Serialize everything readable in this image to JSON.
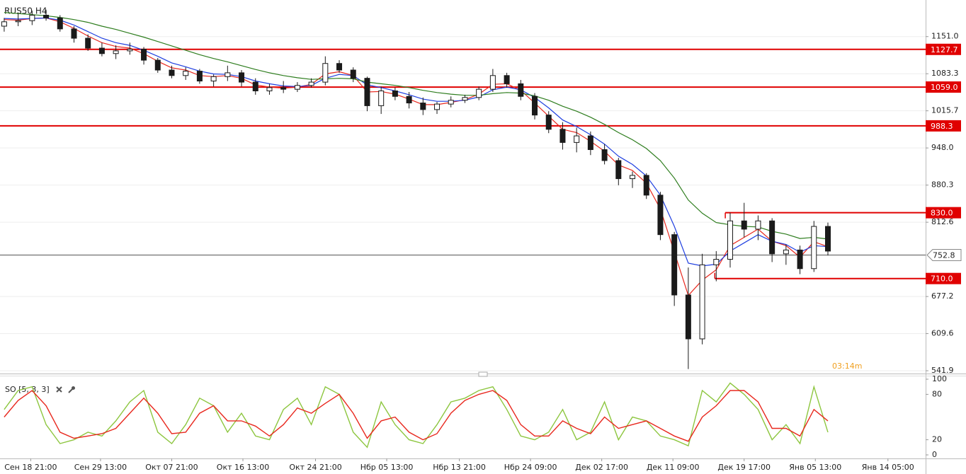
{
  "chart_data": {
    "type": "candlestick",
    "title": "RUS50 H4",
    "timer": "03:14m",
    "xlim": [
      -0.3,
      66
    ],
    "xticks": [
      {
        "value": 1.9,
        "label": "Сен 18 21:00"
      },
      {
        "value": 6.9,
        "label": "Сен 29 13:00"
      },
      {
        "value": 12.0,
        "label": "Окт 07 21:00"
      },
      {
        "value": 17.1,
        "label": "Окт 16 13:00"
      },
      {
        "value": 22.3,
        "label": "Окт 24 21:00"
      },
      {
        "value": 27.4,
        "label": "Нбр 05 13:00"
      },
      {
        "value": 32.6,
        "label": "Нбр 13 21:00"
      },
      {
        "value": 37.7,
        "label": "Нбр 24 09:00"
      },
      {
        "value": 42.8,
        "label": "Дек 02 17:00"
      },
      {
        "value": 47.9,
        "label": "Дек 11 09:00"
      },
      {
        "value": 53.0,
        "label": "Дек 19 17:00"
      },
      {
        "value": 58.1,
        "label": "Янв 05 13:00"
      },
      {
        "value": 63.3,
        "label": "Янв 14 05:00"
      }
    ],
    "ylim": [
      536.8,
      1217.7
    ],
    "yticks": [
      {
        "value": 1151,
        "label": "1151.0"
      },
      1083.3,
      1015.7,
      {
        "value": 948,
        "label": "948.0"
      },
      880.3,
      812.6,
      677.2,
      609.6,
      541.9
    ],
    "grid": true,
    "candle_colors": {
      "up": "#ffffff",
      "down": "#1a1a1a",
      "outline": "#1a1a1a"
    },
    "open": [
      1170,
      1178,
      1180,
      1190,
      1185,
      1165,
      1148,
      1130,
      1120,
      1125,
      1128,
      1108,
      1090,
      1080,
      1088,
      1070,
      1078,
      1085,
      1068,
      1052,
      1058,
      1055,
      1062,
      1068,
      1102,
      1090,
      1075,
      1025,
      1052,
      1042,
      1030,
      1018,
      1028,
      1035,
      1040,
      1055,
      1080,
      1065,
      1042,
      1008,
      982,
      958,
      970,
      945,
      925,
      892,
      898,
      862,
      790,
      680,
      600,
      735,
      745,
      815,
      800,
      815,
      755,
      762,
      728,
      805
    ],
    "high": [
      1185,
      1195,
      1198,
      1200,
      1190,
      1170,
      1155,
      1140,
      1135,
      1140,
      1132,
      1112,
      1098,
      1095,
      1092,
      1082,
      1098,
      1090,
      1075,
      1065,
      1070,
      1068,
      1075,
      1115,
      1108,
      1095,
      1078,
      1060,
      1058,
      1050,
      1040,
      1032,
      1042,
      1045,
      1060,
      1092,
      1085,
      1072,
      1048,
      1015,
      995,
      985,
      978,
      955,
      930,
      905,
      902,
      868,
      795,
      730,
      755,
      760,
      830,
      848,
      825,
      820,
      772,
      770,
      815,
      812
    ],
    "low": [
      1160,
      1170,
      1172,
      1180,
      1160,
      1140,
      1125,
      1115,
      1110,
      1118,
      1100,
      1085,
      1075,
      1072,
      1065,
      1060,
      1070,
      1060,
      1045,
      1045,
      1048,
      1050,
      1058,
      1062,
      1085,
      1068,
      1015,
      1010,
      1035,
      1020,
      1008,
      1010,
      1022,
      1030,
      1035,
      1050,
      1058,
      1035,
      1000,
      975,
      945,
      940,
      935,
      918,
      880,
      875,
      855,
      780,
      660,
      545,
      590,
      705,
      730,
      785,
      780,
      740,
      735,
      718,
      722,
      752
    ],
    "close": [
      1178,
      1180,
      1190,
      1185,
      1165,
      1148,
      1130,
      1120,
      1125,
      1128,
      1108,
      1090,
      1080,
      1088,
      1070,
      1078,
      1085,
      1068,
      1052,
      1058,
      1055,
      1062,
      1068,
      1102,
      1090,
      1075,
      1025,
      1052,
      1042,
      1030,
      1018,
      1028,
      1035,
      1040,
      1055,
      1080,
      1065,
      1042,
      1008,
      982,
      958,
      970,
      945,
      925,
      892,
      898,
      862,
      790,
      680,
      600,
      735,
      745,
      815,
      800,
      815,
      755,
      762,
      728,
      805,
      760
    ],
    "moving_averages": [
      {
        "color": "#e8281e",
        "values": [
          1182,
          1181,
          1184,
          1185,
          1178,
          1166,
          1152,
          1140,
          1133,
          1130,
          1120,
          1106,
          1094,
          1090,
          1080,
          1078,
          1080,
          1075,
          1063,
          1059,
          1057,
          1059,
          1064,
          1083,
          1087,
          1080,
          1050,
          1051,
          1046,
          1037,
          1027,
          1027,
          1031,
          1036,
          1046,
          1064,
          1065,
          1053,
          1030,
          1006,
          982,
          976,
          960,
          942,
          917,
          907,
          884,
          837,
          758,
          679,
          707,
          726,
          770,
          785,
          800,
          778,
          770,
          749,
          777,
          768
        ]
      },
      {
        "color": "#1f3fe0",
        "values": [
          1184,
          1183,
          1184,
          1185,
          1181,
          1172,
          1160,
          1148,
          1140,
          1135,
          1126,
          1115,
          1103,
          1096,
          1088,
          1083,
          1082,
          1078,
          1070,
          1065,
          1061,
          1060,
          1062,
          1075,
          1082,
          1080,
          1063,
          1058,
          1052,
          1045,
          1037,
          1033,
          1033,
          1035,
          1041,
          1054,
          1059,
          1054,
          1040,
          1021,
          999,
          987,
          972,
          955,
          933,
          918,
          897,
          862,
          805,
          738,
          733,
          736,
          760,
          775,
          790,
          778,
          772,
          758,
          770,
          768
        ]
      },
      {
        "color": "#2e7d1e",
        "values": [
          1195,
          1193,
          1191,
          1189,
          1186,
          1182,
          1177,
          1170,
          1164,
          1157,
          1150,
          1142,
          1134,
          1126,
          1118,
          1111,
          1105,
          1098,
          1091,
          1085,
          1080,
          1076,
          1073,
          1074,
          1075,
          1074,
          1068,
          1065,
          1062,
          1058,
          1053,
          1049,
          1046,
          1044,
          1044,
          1047,
          1049,
          1048,
          1043,
          1035,
          1024,
          1015,
          1004,
          991,
          976,
          963,
          947,
          925,
          893,
          853,
          829,
          812,
          808,
          805,
          804,
          796,
          791,
          783,
          785,
          782
        ]
      }
    ],
    "levels": [
      {
        "value": 1127.7,
        "color": "#e00000"
      },
      {
        "value": 1059,
        "label": "1059.0",
        "color": "#e00000"
      },
      {
        "value": 988.3,
        "color": "#e00000"
      },
      {
        "value": 830,
        "label": "830.0",
        "color": "#e00000",
        "x_start": 51.65
      },
      {
        "value": 710,
        "label": "710.0",
        "color": "#e00000",
        "x_start": 50.9
      }
    ],
    "current_price": 752.8,
    "oscillator": {
      "title": "SO [5, 3, 3]",
      "ylim": [
        0,
        100
      ],
      "yticks": [
        0,
        20,
        80,
        100
      ],
      "k": {
        "color": "#8dc63f",
        "values": [
          60,
          85,
          90,
          40,
          15,
          20,
          30,
          25,
          45,
          70,
          85,
          30,
          15,
          40,
          75,
          65,
          30,
          55,
          25,
          20,
          60,
          75,
          40,
          90,
          80,
          30,
          10,
          70,
          40,
          20,
          15,
          40,
          70,
          75,
          85,
          90,
          60,
          25,
          20,
          30,
          60,
          20,
          30,
          70,
          20,
          50,
          45,
          25,
          20,
          12,
          85,
          70,
          95,
          80,
          60,
          20,
          40,
          15,
          90,
          30
        ]
      },
      "d": {
        "color": "#e8281e",
        "values": [
          50,
          72,
          85,
          65,
          30,
          22,
          25,
          28,
          35,
          55,
          75,
          55,
          28,
          30,
          55,
          65,
          45,
          45,
          38,
          25,
          40,
          62,
          55,
          68,
          80,
          55,
          22,
          45,
          50,
          30,
          20,
          28,
          55,
          72,
          80,
          85,
          72,
          40,
          25,
          25,
          45,
          35,
          28,
          50,
          35,
          40,
          45,
          35,
          25,
          18,
          50,
          65,
          85,
          85,
          70,
          35,
          35,
          25,
          60,
          45
        ]
      }
    }
  }
}
